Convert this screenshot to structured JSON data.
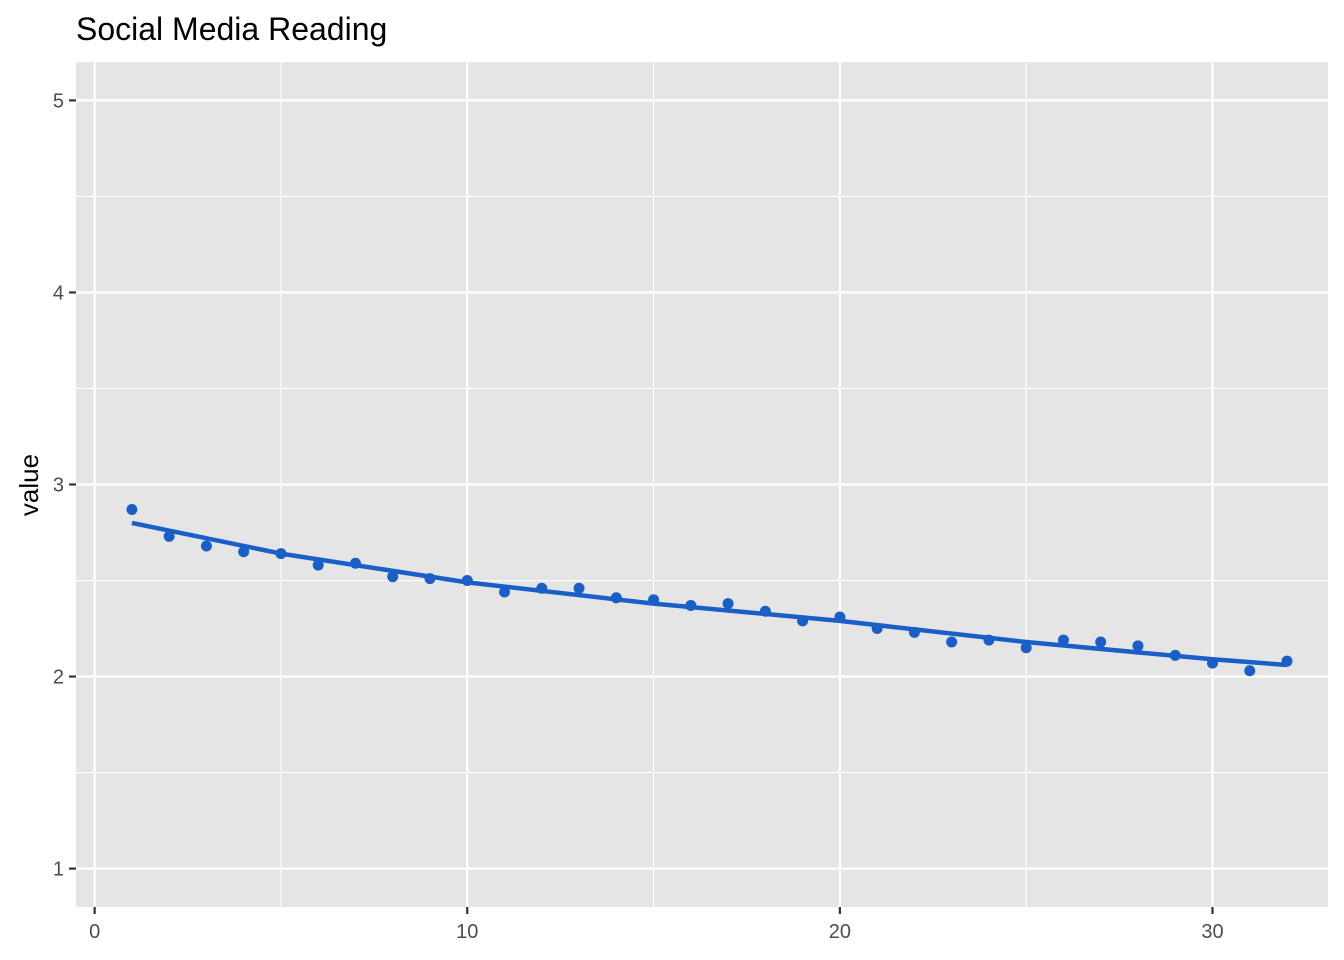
{
  "chart_data": {
    "type": "scatter",
    "title": "Social Media Reading",
    "xlabel": "",
    "ylabel": "value",
    "xlim": [
      -0.5,
      33.1
    ],
    "ylim": [
      0.8,
      5.2
    ],
    "x_ticks": [
      0,
      10,
      20,
      30
    ],
    "y_ticks": [
      1,
      2,
      3,
      4,
      5
    ],
    "grid": true,
    "legend": "none",
    "colors": {
      "panel": "#e5e5e5",
      "grid": "#ffffff",
      "series": "#1a5fc8"
    },
    "points": {
      "x": [
        1,
        2,
        3,
        4,
        5,
        6,
        7,
        8,
        9,
        10,
        11,
        12,
        13,
        14,
        15,
        16,
        17,
        18,
        19,
        20,
        21,
        22,
        23,
        24,
        25,
        26,
        27,
        28,
        29,
        30,
        31,
        32
      ],
      "y": [
        2.87,
        2.73,
        2.68,
        2.65,
        2.64,
        2.58,
        2.59,
        2.52,
        2.51,
        2.5,
        2.44,
        2.46,
        2.46,
        2.41,
        2.4,
        2.37,
        2.38,
        2.34,
        2.29,
        2.31,
        2.25,
        2.23,
        2.18,
        2.19,
        2.15,
        2.19,
        2.18,
        2.16,
        2.11,
        2.07,
        2.03,
        2.08
      ]
    },
    "trend_line": {
      "x": [
        1,
        5,
        10,
        15,
        20,
        25,
        30,
        32
      ],
      "y": [
        2.8,
        2.64,
        2.49,
        2.38,
        2.29,
        2.18,
        2.09,
        2.06
      ]
    }
  }
}
